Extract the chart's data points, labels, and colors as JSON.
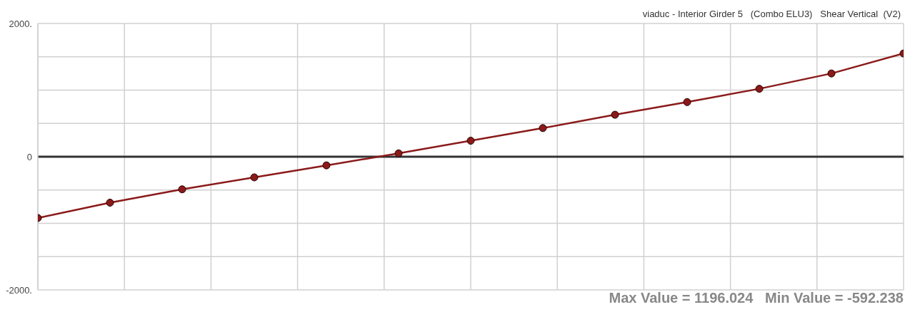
{
  "chart_data": {
    "type": "line",
    "title": "viaduc - Interior Girder 5   (Combo ELU3)   Shear Vertical  (V2)",
    "annotations": [
      "Max Value = 1196.024   Min Value = -592.238"
    ],
    "categories": [
      null,
      null,
      null,
      null,
      null,
      null,
      null,
      null,
      null,
      null,
      null,
      null,
      null
    ],
    "series": [
      {
        "color": "#8b1a1a",
        "values": [
          -920,
          -690,
          -490,
          -310,
          -130,
          50,
          240,
          430,
          630,
          820,
          1020,
          1250,
          1550
        ]
      }
    ],
    "ylim": [
      -2000,
      2000
    ],
    "yticks": [
      {
        "value": -2000,
        "label": "-2000."
      },
      {
        "value": -1500,
        "label": null
      },
      {
        "value": -1000,
        "label": null
      },
      {
        "value": -500,
        "label": null
      },
      0,
      {
        "value": 500,
        "label": null
      },
      {
        "value": 1000,
        "label": null
      },
      {
        "value": 1500,
        "label": null
      },
      {
        "value": 2000,
        "label": "2000."
      }
    ],
    "ref_lines": [
      {
        "axis": "y",
        "value": 0,
        "color": "#333333"
      }
    ],
    "grid": true,
    "marker": "circle",
    "line_style": "solid",
    "tick_labels": "y"
  }
}
